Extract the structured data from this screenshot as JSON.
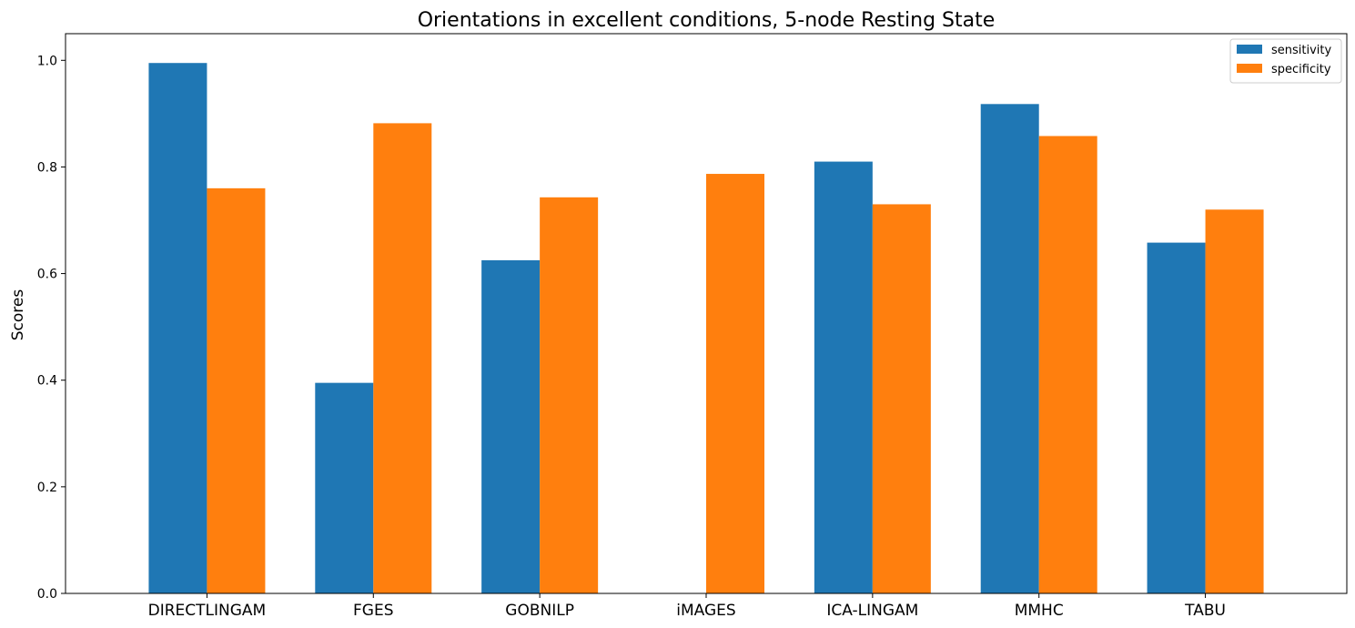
{
  "chart_data": {
    "type": "bar",
    "title": "Orientations in excellent conditions, 5-node Resting State",
    "xlabel": "",
    "ylabel": "Scores",
    "categories": [
      "DIRECTLINGAM",
      "FGES",
      "GOBNILP",
      "iMAGES",
      "ICA-LINGAM",
      "MMHC",
      "TABU"
    ],
    "series": [
      {
        "name": "sensitivity",
        "color": "#1f77b4",
        "values": [
          0.995,
          0.395,
          0.625,
          0.0,
          0.81,
          0.918,
          0.658
        ]
      },
      {
        "name": "specificity",
        "color": "#ff7f0e",
        "values": [
          0.76,
          0.882,
          0.743,
          0.787,
          0.73,
          0.858,
          0.72
        ]
      }
    ],
    "ylim": [
      0,
      1.05
    ],
    "yticks": [
      0.0,
      0.2,
      0.4,
      0.6,
      0.8,
      1.0
    ],
    "ytick_labels": [
      "0.0",
      "0.2",
      "0.4",
      "0.6",
      "0.8",
      "1.0"
    ],
    "grid": false,
    "legend_position": "top-right"
  }
}
